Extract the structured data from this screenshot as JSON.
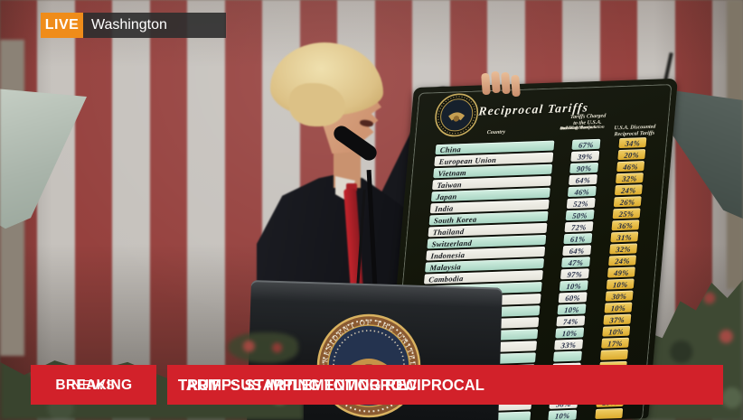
{
  "live_badge": {
    "live_label": "LIVE",
    "location": "Washington"
  },
  "banner": {
    "breaking_line1": "BREAKING",
    "breaking_line2": "NEWS",
    "headline_line1": "TRUMP: US IMPLEMENTING RECIPROCAL",
    "headline_line2": "TARIFFS STARTING TOMORROW"
  },
  "board": {
    "title": "Reciprocal Tariffs",
    "columns": {
      "country_header": "Country",
      "charged_line1": "Tariffs Charged",
      "charged_line2": "to the U.S.A.",
      "charged_sub1": "Including",
      "charged_sub2": "Currency Manipulation",
      "charged_sub3": "and Trade Barriers",
      "discounted_line1": "U.S.A. Discounted",
      "discounted_line2": "Reciprocal Tariffs"
    }
  },
  "podium": {
    "seal_text": "PRESIDENT OF THE UNITED"
  },
  "chart_data": {
    "type": "table",
    "title": "Reciprocal Tariffs",
    "columns": [
      "Country",
      "Tariffs Charged to the U.S.A. Including Currency Manipulation and Trade Barriers",
      "U.S.A. Discounted Reciprocal Tariffs"
    ],
    "rows": [
      {
        "country": "China",
        "charged": "67%",
        "discounted": "34%",
        "tint": "teal"
      },
      {
        "country": "European Union",
        "charged": "39%",
        "discounted": "20%",
        "tint": "white"
      },
      {
        "country": "Vietnam",
        "charged": "90%",
        "discounted": "46%",
        "tint": "teal"
      },
      {
        "country": "Taiwan",
        "charged": "64%",
        "discounted": "32%",
        "tint": "white"
      },
      {
        "country": "Japan",
        "charged": "46%",
        "discounted": "24%",
        "tint": "teal"
      },
      {
        "country": "India",
        "charged": "52%",
        "discounted": "26%",
        "tint": "white"
      },
      {
        "country": "South Korea",
        "charged": "50%",
        "discounted": "25%",
        "tint": "teal"
      },
      {
        "country": "Thailand",
        "charged": "72%",
        "discounted": "36%",
        "tint": "white"
      },
      {
        "country": "Switzerland",
        "charged": "61%",
        "discounted": "31%",
        "tint": "teal"
      },
      {
        "country": "Indonesia",
        "charged": "64%",
        "discounted": "32%",
        "tint": "white"
      },
      {
        "country": "Malaysia",
        "charged": "47%",
        "discounted": "24%",
        "tint": "teal"
      },
      {
        "country": "Cambodia",
        "charged": "97%",
        "discounted": "49%",
        "tint": "white"
      },
      {
        "country": "",
        "charged": "10%",
        "discounted": "10%",
        "tint": "teal"
      },
      {
        "country": "",
        "charged": "60%",
        "discounted": "30%",
        "tint": "white"
      },
      {
        "country": "",
        "charged": "10%",
        "discounted": "10%",
        "tint": "teal"
      },
      {
        "country": "",
        "charged": "74%",
        "discounted": "37%",
        "tint": "white"
      },
      {
        "country": "",
        "charged": "10%",
        "discounted": "10%",
        "tint": "teal"
      },
      {
        "country": "",
        "charged": "33%",
        "discounted": "17%",
        "tint": "white"
      },
      {
        "country": "",
        "charged": "",
        "discounted": "",
        "tint": "teal"
      },
      {
        "country": "",
        "charged": "",
        "discounted": "",
        "tint": "white"
      },
      {
        "country": "",
        "charged": "",
        "discounted": "",
        "tint": "teal"
      },
      {
        "country": "",
        "charged": "",
        "discounted": "",
        "tint": "white"
      },
      {
        "country": "",
        "charged": "58%",
        "discounted": "29%",
        "tint": "white"
      },
      {
        "country": "",
        "charged": "10%",
        "discounted": "",
        "tint": "teal"
      }
    ]
  },
  "colors": {
    "banner_red": "#d2212a",
    "live_orange": "#ef8c1a",
    "stripe_red": "#96413e",
    "stripe_white": "#c6c2bd",
    "box_teal": "#b7decf",
    "box_gold": "#e2b33c",
    "board_black": "#14170f"
  }
}
